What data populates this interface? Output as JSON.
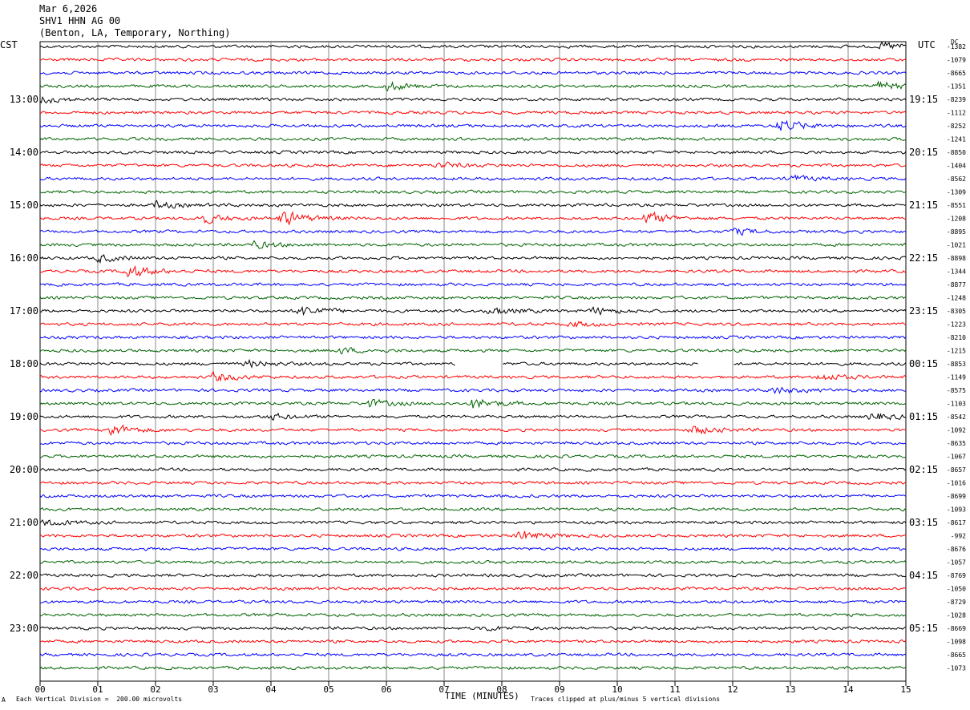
{
  "header": {
    "date": "Mar 6,2026",
    "station": "SHV1 HHN AG 00",
    "location": "(Benton, LA, Temporary, Northing)"
  },
  "left_tz": "CST",
  "right_tz": "UTC",
  "dc_label": "DC",
  "footer": {
    "scale": "Each Vertical Division =  200.00 microvolts",
    "clip": "Traces clipped at plus/minus 5 vertical divisions",
    "corner_mark": "A"
  },
  "chart_data": {
    "type": "line",
    "title": "",
    "xlabel": "TIME (MINUTES)",
    "ylabel": "",
    "xlim": [
      0,
      15
    ],
    "x_ticks": [
      "00",
      "01",
      "02",
      "03",
      "04",
      "05",
      "06",
      "07",
      "08",
      "09",
      "10",
      "11",
      "12",
      "13",
      "14",
      "15"
    ],
    "trace_count": 48,
    "trace_colors": [
      "#000000",
      "#ff0000",
      "#0000ff",
      "#006400"
    ],
    "left_hour_labels": [
      "13:00",
      "14:00",
      "15:00",
      "16:00",
      "17:00",
      "18:00",
      "19:00",
      "20:00",
      "21:00",
      "22:00",
      "23:00"
    ],
    "right_hour_labels": [
      "19:15",
      "20:15",
      "21:15",
      "22:15",
      "23:15",
      "00:15",
      "01:15",
      "02:15",
      "03:15",
      "04:15",
      "05:15"
    ],
    "dc_offsets": [
      "-1382",
      "-1079",
      "-8665",
      "-1351",
      "-8239",
      "-1112",
      "-8252",
      "-1241",
      "-8850",
      "-1404",
      "-8562",
      "-1309",
      "-8551",
      "-1208",
      "-8895",
      "-1021",
      "-8898",
      "-1344",
      "-8877",
      "-1248",
      "-8305",
      "-1223",
      "-8210",
      "-1215",
      "-8853",
      "-1149",
      "-8575",
      "-1103",
      "-8542",
      "-1092",
      "-8635",
      "-1067",
      "-8657",
      "-1016",
      "-8699",
      "-1093",
      "-8617",
      "-992",
      "-8676",
      "-1057",
      "-8769",
      "-1050",
      "-8729",
      "-1028",
      "-8669",
      "-1098",
      "-8665",
      "-1073"
    ],
    "events": [
      {
        "trace": 0,
        "minute": 14.6,
        "amp": 1.6
      },
      {
        "trace": 3,
        "minute": 6.0,
        "amp": 1.8
      },
      {
        "trace": 3,
        "minute": 14.5,
        "amp": 2.0
      },
      {
        "trace": 4,
        "minute": 0.0,
        "amp": 1.6
      },
      {
        "trace": 6,
        "minute": 12.8,
        "amp": 2.8
      },
      {
        "trace": 9,
        "minute": 6.9,
        "amp": 1.2
      },
      {
        "trace": 10,
        "minute": 13.0,
        "amp": 1.3
      },
      {
        "trace": 12,
        "minute": 2.0,
        "amp": 1.4
      },
      {
        "trace": 13,
        "minute": 2.8,
        "amp": 2.0
      },
      {
        "trace": 13,
        "minute": 4.2,
        "amp": 3.2
      },
      {
        "trace": 13,
        "minute": 10.5,
        "amp": 2.6
      },
      {
        "trace": 14,
        "minute": 12.0,
        "amp": 1.3
      },
      {
        "trace": 15,
        "minute": 3.7,
        "amp": 1.4
      },
      {
        "trace": 16,
        "minute": 1.0,
        "amp": 1.6
      },
      {
        "trace": 17,
        "minute": 1.5,
        "amp": 3.0
      },
      {
        "trace": 20,
        "minute": 4.5,
        "amp": 2.4
      },
      {
        "trace": 20,
        "minute": 7.8,
        "amp": 1.8
      },
      {
        "trace": 20,
        "minute": 9.6,
        "amp": 1.5
      },
      {
        "trace": 21,
        "minute": 9.2,
        "amp": 1.2
      },
      {
        "trace": 23,
        "minute": 5.2,
        "amp": 1.1
      },
      {
        "trace": 24,
        "minute": 3.6,
        "amp": 1.4
      },
      {
        "trace": 25,
        "minute": 3.0,
        "amp": 1.8
      },
      {
        "trace": 25,
        "minute": 13.5,
        "amp": 1.7
      },
      {
        "trace": 26,
        "minute": 12.7,
        "amp": 1.5
      },
      {
        "trace": 27,
        "minute": 7.5,
        "amp": 2.4
      },
      {
        "trace": 27,
        "minute": 5.7,
        "amp": 1.6
      },
      {
        "trace": 28,
        "minute": 14.4,
        "amp": 1.7
      },
      {
        "trace": 28,
        "minute": 4.0,
        "amp": 1.2
      },
      {
        "trace": 29,
        "minute": 1.2,
        "amp": 2.6
      },
      {
        "trace": 29,
        "minute": 11.3,
        "amp": 1.8
      },
      {
        "trace": 36,
        "minute": 0.1,
        "amp": 1.5
      },
      {
        "trace": 37,
        "minute": 8.3,
        "amp": 2.2
      },
      {
        "trace": 44,
        "minute": 7.7,
        "amp": 0.9
      }
    ],
    "gaps": [
      {
        "trace": 24,
        "from": 7.2,
        "to": 8.0
      },
      {
        "trace": 24,
        "from": 11.4,
        "to": 12.0
      }
    ]
  }
}
